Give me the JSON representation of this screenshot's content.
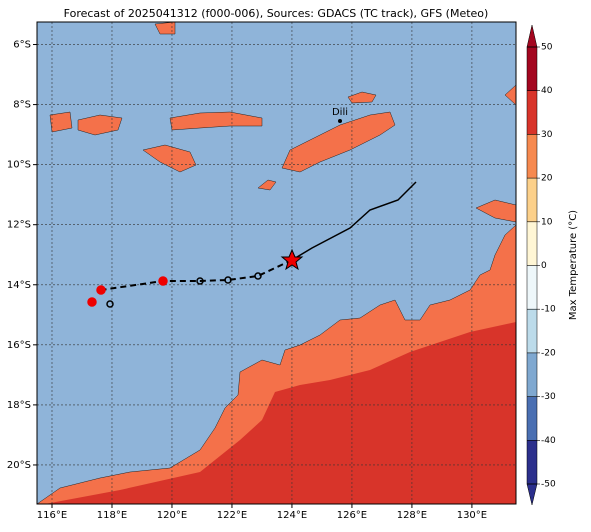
{
  "title": "Forecast of 2025041312 (f000-006), Sources: GDACS (TC track), GFS (Meteo)",
  "map": {
    "xlim": [
      115.5,
      131.47
    ],
    "ylim": [
      -21.3,
      -5.25
    ],
    "grid": true,
    "xticks": [
      {
        "value": 116,
        "label": "116°E"
      },
      {
        "value": 118,
        "label": "118°E"
      },
      {
        "value": 120,
        "label": "120°E"
      },
      {
        "value": 122,
        "label": "122°E"
      },
      {
        "value": 124,
        "label": "124°E"
      },
      {
        "value": 126,
        "label": "126°E"
      },
      {
        "value": 128,
        "label": "128°E"
      },
      {
        "value": 130,
        "label": "130°E"
      }
    ],
    "yticks": [
      {
        "value": -6,
        "label": "6°S"
      },
      {
        "value": -8,
        "label": "8°S"
      },
      {
        "value": -10,
        "label": "10°S"
      },
      {
        "value": -12,
        "label": "12°S"
      },
      {
        "value": -14,
        "label": "14°S"
      },
      {
        "value": -16,
        "label": "16°S"
      },
      {
        "value": -18,
        "label": "18°S"
      },
      {
        "value": -20,
        "label": "20°S"
      }
    ],
    "place": {
      "label": "Dili"
    }
  },
  "colorbar": {
    "label": "Max Temperature (°C)",
    "lim": [
      -50,
      50
    ],
    "ticks": [
      -50,
      -40,
      -30,
      -20,
      -10,
      0,
      10,
      20,
      30,
      40,
      50
    ],
    "colors": [
      "#2b2f8c",
      "#4a6fb2",
      "#7fa8d0",
      "#bcdbea",
      "#eef7fa",
      "#fff6d5",
      "#fcd08a",
      "#f6894f",
      "#d8342a",
      "#a3061f"
    ]
  }
}
